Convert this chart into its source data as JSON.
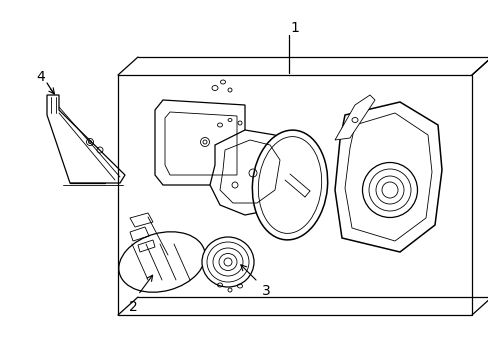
{
  "background_color": "#ffffff",
  "line_color": "#000000",
  "label_1": "1",
  "label_2": "2",
  "label_3": "3",
  "label_4": "4",
  "label_fontsize": 10,
  "fig_width": 4.89,
  "fig_height": 3.6,
  "dpi": 100
}
